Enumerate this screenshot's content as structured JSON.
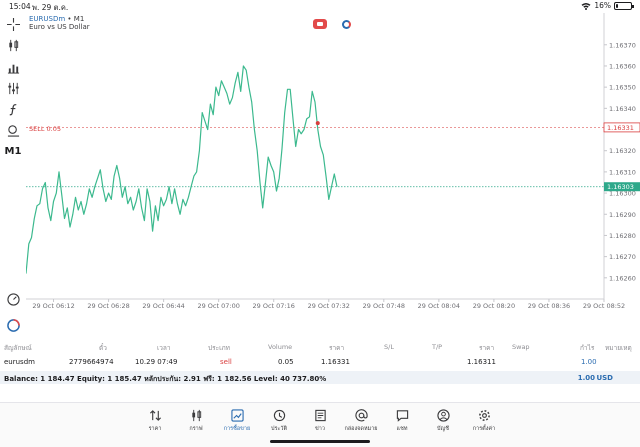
{
  "status_bar": {
    "time": "15:04",
    "date": "พ. 29 ต.ค.",
    "battery": "16%",
    "battery_level": 0.16
  },
  "chart": {
    "symbol": "EURUSDm",
    "timeframe_suffix": "• M1",
    "description": "Euro vs US Dollar",
    "sell_line": {
      "label": "SELL 0.05",
      "price": 1.16331,
      "price_text": "1.16331",
      "color": "#d93d3d"
    },
    "bid_line": {
      "price": 1.16303,
      "price_text": "1.16303",
      "color": "#2ea88a"
    },
    "line_color": "#3cb98e"
  },
  "chart_data": {
    "type": "line",
    "title": "",
    "ylim": [
      1.1625,
      1.16385
    ],
    "y_ticks": [
      "1.16370",
      "1.16360",
      "1.16350",
      "1.16340",
      "1.16320",
      "1.16310",
      "1.16300",
      "1.16290",
      "1.16280",
      "1.16270",
      "1.16260"
    ],
    "x_ticks": [
      "29 Oct 06:12",
      "29 Oct 06:28",
      "29 Oct 06:44",
      "29 Oct 07:00",
      "29 Oct 07:16",
      "29 Oct 07:32",
      "29 Oct 07:48",
      "29 Oct 08:04",
      "29 Oct 08:20",
      "29 Oct 08:36",
      "29 Oct 08:52"
    ],
    "x_range": [
      0,
      210
    ],
    "x_tick_positions": [
      10,
      30,
      50,
      70,
      90,
      110,
      130,
      150,
      170,
      190,
      210
    ],
    "series": [
      {
        "values": [
          [
            0,
            1.16262
          ],
          [
            1,
            1.16276
          ],
          [
            2,
            1.16279
          ],
          [
            3,
            1.16288
          ],
          [
            4,
            1.16294
          ],
          [
            5,
            1.16295
          ],
          [
            6,
            1.16302
          ],
          [
            7,
            1.16305
          ],
          [
            8,
            1.16293
          ],
          [
            9,
            1.16287
          ],
          [
            10,
            1.16296
          ],
          [
            11,
            1.163
          ],
          [
            12,
            1.1631
          ],
          [
            13,
            1.16299
          ],
          [
            14,
            1.16288
          ],
          [
            15,
            1.16293
          ],
          [
            16,
            1.16284
          ],
          [
            17,
            1.1629
          ],
          [
            18,
            1.16298
          ],
          [
            19,
            1.16292
          ],
          [
            20,
            1.16296
          ],
          [
            21,
            1.1629
          ],
          [
            22,
            1.16295
          ],
          [
            23,
            1.16302
          ],
          [
            24,
            1.16298
          ],
          [
            25,
            1.16303
          ],
          [
            26,
            1.16307
          ],
          [
            27,
            1.16311
          ],
          [
            28,
            1.16302
          ],
          [
            29,
            1.16296
          ],
          [
            30,
            1.163
          ],
          [
            31,
            1.16297
          ],
          [
            32,
            1.16308
          ],
          [
            33,
            1.16313
          ],
          [
            34,
            1.16307
          ],
          [
            35,
            1.16298
          ],
          [
            36,
            1.16303
          ],
          [
            37,
            1.16295
          ],
          [
            38,
            1.16298
          ],
          [
            39,
            1.16292
          ],
          [
            40,
            1.16296
          ],
          [
            41,
            1.16302
          ],
          [
            42,
            1.16293
          ],
          [
            43,
            1.16287
          ],
          [
            44,
            1.16302
          ],
          [
            45,
            1.16296
          ],
          [
            46,
            1.16282
          ],
          [
            47,
            1.16294
          ],
          [
            48,
            1.16287
          ],
          [
            49,
            1.16298
          ],
          [
            50,
            1.16294
          ],
          [
            51,
            1.16297
          ],
          [
            52,
            1.16303
          ],
          [
            53,
            1.16295
          ],
          [
            54,
            1.16302
          ],
          [
            55,
            1.16295
          ],
          [
            56,
            1.1629
          ],
          [
            57,
            1.16297
          ],
          [
            58,
            1.16294
          ],
          [
            59,
            1.16298
          ],
          [
            60,
            1.16303
          ],
          [
            61,
            1.16308
          ],
          [
            62,
            1.1631
          ],
          [
            63,
            1.1632
          ],
          [
            64,
            1.16338
          ],
          [
            65,
            1.16334
          ],
          [
            66,
            1.1633
          ],
          [
            67,
            1.16342
          ],
          [
            68,
            1.16337
          ],
          [
            69,
            1.1635
          ],
          [
            70,
            1.16346
          ],
          [
            71,
            1.16353
          ],
          [
            72,
            1.1635
          ],
          [
            73,
            1.16347
          ],
          [
            74,
            1.16342
          ],
          [
            75,
            1.16345
          ],
          [
            76,
            1.16352
          ],
          [
            77,
            1.16357
          ],
          [
            78,
            1.16348
          ],
          [
            79,
            1.1636
          ],
          [
            80,
            1.16358
          ],
          [
            81,
            1.1635
          ],
          [
            82,
            1.16343
          ],
          [
            83,
            1.1633
          ],
          [
            84,
            1.1632
          ],
          [
            85,
            1.16305
          ],
          [
            86,
            1.16293
          ],
          [
            87,
            1.16305
          ],
          [
            88,
            1.16317
          ],
          [
            89,
            1.16313
          ],
          [
            90,
            1.1631
          ],
          [
            91,
            1.16301
          ],
          [
            92,
            1.16307
          ],
          [
            93,
            1.16321
          ],
          [
            94,
            1.16338
          ],
          [
            95,
            1.16349
          ],
          [
            96,
            1.16349
          ],
          [
            97,
            1.16335
          ],
          [
            98,
            1.16322
          ],
          [
            99,
            1.1633
          ],
          [
            100,
            1.16328
          ],
          [
            101,
            1.1633
          ],
          [
            102,
            1.16335
          ],
          [
            103,
            1.16336
          ],
          [
            104,
            1.16348
          ],
          [
            105,
            1.16343
          ],
          [
            106,
            1.1633
          ],
          [
            107,
            1.16322
          ],
          [
            108,
            1.16318
          ],
          [
            109,
            1.16308
          ],
          [
            110,
            1.16297
          ],
          [
            111,
            1.16303
          ],
          [
            112,
            1.16309
          ],
          [
            113,
            1.16303
          ]
        ]
      }
    ],
    "markers": [
      {
        "x": 106,
        "y": 1.16333,
        "color": "#d93d3d"
      }
    ]
  },
  "table": {
    "headers": [
      "สัญลักษณ์",
      "ตั๋ว",
      "เวลา",
      "ประเภท",
      "Volume",
      "ราคา",
      "S/L",
      "T/P",
      "ราคา",
      "Swap",
      "กำไร",
      "หมายเหตุ"
    ],
    "row": {
      "symbol": "eurusdm",
      "ticket": "2779664974",
      "time": "10.29 07:49",
      "type": "sell",
      "volume": "0.05",
      "price_open": "1.16331",
      "price_current": "1.16311",
      "profit": "1.00"
    }
  },
  "balance": {
    "text": "Balance: 1 184.47 Equity: 1 185.47 หลักประกัน: 2.91 ฟรี: 1 182.56 Level: 40 737.80%",
    "amount": "1.00",
    "currency": "USD"
  },
  "bottom_nav": {
    "items": [
      {
        "label": "ราคา",
        "icon": "arrows-updown-icon"
      },
      {
        "label": "กราฟ",
        "icon": "candles-icon"
      },
      {
        "label": "การซื้อขาย",
        "icon": "trade-chart-icon"
      },
      {
        "label": "ประวัติ",
        "icon": "history-icon"
      },
      {
        "label": "ข่าว",
        "icon": "news-icon"
      },
      {
        "label": "กล่องจดหมาย",
        "icon": "mail-at-icon"
      },
      {
        "label": "แชท",
        "icon": "chat-icon"
      },
      {
        "label": "บัญชี",
        "icon": "account-icon"
      },
      {
        "label": "การตั้งค่า",
        "icon": "settings-gear-icon"
      }
    ],
    "active_index": 2
  },
  "left_toolbar": {
    "timeframe": "M1",
    "icons": [
      "crosshair-icon",
      "candlestick-icon",
      "bar-chart-icon",
      "indicators-icon",
      "function-icon",
      "objects-icon"
    ],
    "bottom_icons": [
      "speedometer-icon",
      "flag-circle-icon"
    ]
  }
}
